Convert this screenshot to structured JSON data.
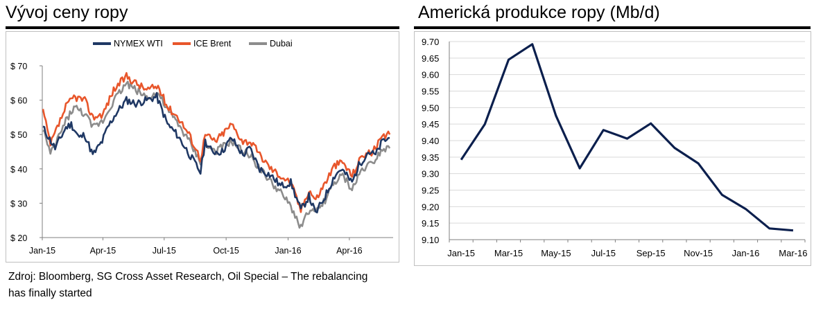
{
  "chart_data": [
    {
      "type": "line",
      "title": "Vývoj ceny ropy",
      "series": [
        {
          "name": "NYMEX WTI",
          "color": "#1f3864",
          "x": [
            "2015-01-02",
            "2015-01-20",
            "2015-02-05",
            "2015-02-13",
            "2015-02-25",
            "2015-03-05",
            "2015-03-17",
            "2015-03-31",
            "2015-04-08",
            "2015-04-20",
            "2015-05-06",
            "2015-05-20",
            "2015-06-05",
            "2015-06-20",
            "2015-07-06",
            "2015-07-20",
            "2015-08-05",
            "2015-08-24",
            "2015-08-31",
            "2015-09-10",
            "2015-09-25",
            "2015-10-09",
            "2015-10-26",
            "2015-11-05",
            "2015-11-20",
            "2015-12-07",
            "2015-12-21",
            "2016-01-05",
            "2016-01-20",
            "2016-02-01",
            "2016-02-11",
            "2016-02-25",
            "2016-03-10",
            "2016-03-20",
            "2016-04-05",
            "2016-04-15",
            "2016-04-29",
            "2016-05-10",
            "2016-05-20",
            "2016-05-31"
          ],
          "values": [
            52,
            46,
            52,
            53,
            49,
            50,
            44,
            48,
            52,
            56,
            60,
            59,
            60,
            61,
            53,
            50,
            45,
            39,
            48,
            45,
            45,
            49,
            44,
            46,
            40,
            38,
            35,
            36,
            28,
            32,
            27,
            32,
            38,
            40,
            36,
            41,
            45,
            44,
            48,
            49
          ]
        },
        {
          "name": "ICE Brent",
          "color": "#e8562b",
          "x": [
            "2015-01-02",
            "2015-01-13",
            "2015-02-05",
            "2015-02-17",
            "2015-03-05",
            "2015-03-17",
            "2015-04-01",
            "2015-04-17",
            "2015-05-06",
            "2015-05-20",
            "2015-06-05",
            "2015-06-22",
            "2015-07-06",
            "2015-07-22",
            "2015-08-07",
            "2015-08-24",
            "2015-08-31",
            "2015-09-15",
            "2015-10-09",
            "2015-10-26",
            "2015-11-06",
            "2015-11-20",
            "2015-12-07",
            "2015-12-21",
            "2016-01-05",
            "2016-01-20",
            "2016-02-01",
            "2016-02-11",
            "2016-02-25",
            "2016-03-10",
            "2016-03-22",
            "2016-04-05",
            "2016-04-20",
            "2016-05-06",
            "2016-05-20",
            "2016-05-31"
          ],
          "values": [
            57,
            47,
            58,
            61,
            60,
            55,
            56,
            63,
            67,
            65,
            63,
            64,
            58,
            55,
            50,
            43,
            50,
            48,
            53,
            48,
            48,
            44,
            40,
            38,
            36,
            28,
            34,
            31,
            36,
            41,
            42,
            38,
            44,
            45,
            49,
            50
          ]
        },
        {
          "name": "Dubai",
          "color": "#8c8c8c",
          "x": [
            "2015-01-02",
            "2015-01-13",
            "2015-02-05",
            "2015-02-17",
            "2015-03-05",
            "2015-03-17",
            "2015-04-01",
            "2015-04-17",
            "2015-05-06",
            "2015-05-20",
            "2015-06-05",
            "2015-06-22",
            "2015-07-06",
            "2015-07-22",
            "2015-08-07",
            "2015-08-24",
            "2015-08-31",
            "2015-09-15",
            "2015-10-09",
            "2015-10-26",
            "2015-11-06",
            "2015-11-20",
            "2015-12-07",
            "2015-12-21",
            "2016-01-05",
            "2016-01-20",
            "2016-02-01",
            "2016-02-11",
            "2016-02-25",
            "2016-03-10",
            "2016-03-22",
            "2016-04-05",
            "2016-04-20",
            "2016-05-06",
            "2016-05-20",
            "2016-05-31"
          ],
          "values": [
            52,
            44,
            54,
            58,
            56,
            52,
            54,
            60,
            65,
            63,
            61,
            62,
            57,
            53,
            48,
            42,
            47,
            45,
            48,
            45,
            44,
            40,
            36,
            33,
            29,
            23,
            28,
            27,
            31,
            36,
            38,
            34,
            40,
            42,
            46,
            46
          ]
        }
      ],
      "y_tick_labels": [
        "$ 20",
        "$ 30",
        "$ 40",
        "$ 50",
        "$ 60",
        "$ 70"
      ],
      "ylim": [
        20,
        70
      ],
      "x_tick_labels": [
        "Jan-15",
        "Apr-15",
        "Jul-15",
        "Oct-15",
        "Jan-16",
        "Apr-16"
      ],
      "xlim": [
        "2015-01-01",
        "2016-06-05"
      ],
      "legend": "top",
      "grid": false
    },
    {
      "type": "line",
      "title": "Americká produkce ropy (Mb/d)",
      "series": [
        {
          "color": "#0b1f4d",
          "x": [
            "Jan-15",
            "Feb-15",
            "Mar-15",
            "Apr-15",
            "May-15",
            "Jun-15",
            "Jul-15",
            "Aug-15",
            "Sep-15",
            "Oct-15",
            "Nov-15",
            "Dec-15",
            "Jan-16",
            "Feb-16",
            "Mar-16"
          ],
          "values": [
            9.342,
            9.45,
            9.645,
            9.692,
            9.475,
            9.316,
            9.432,
            9.406,
            9.452,
            9.378,
            9.331,
            9.236,
            9.193,
            9.134,
            9.128
          ]
        }
      ],
      "y_tick_labels": [
        "9.10",
        "9.15",
        "9.20",
        "9.25",
        "9.30",
        "9.35",
        "9.40",
        "9.45",
        "9.50",
        "9.55",
        "9.60",
        "9.65",
        "9.70"
      ],
      "ylim": [
        9.1,
        9.7
      ],
      "x_tick_labels": [
        "Jan-15",
        "Mar-15",
        "May-15",
        "Jul-15",
        "Sep-15",
        "Nov-15",
        "Jan-16",
        "Mar-16"
      ],
      "grid": true
    }
  ],
  "source_note": "Zdroj: Bloomberg, SG Cross Asset Research, Oil Special – The rebalancing has finally started"
}
